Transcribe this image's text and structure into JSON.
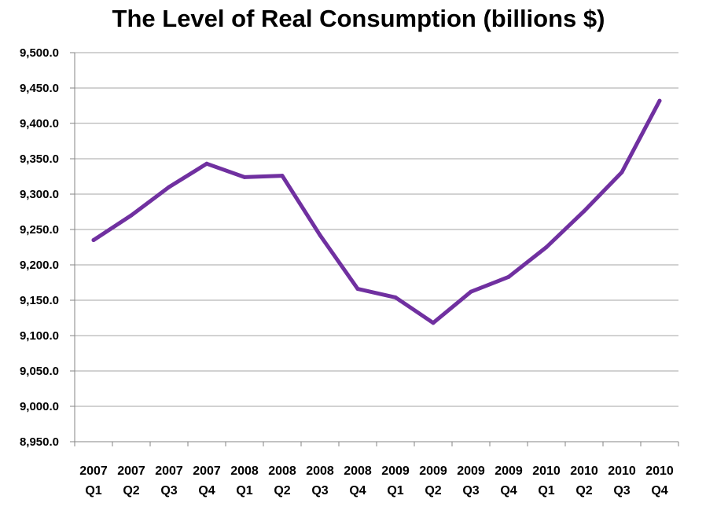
{
  "chart_data": {
    "type": "line",
    "title": "The Level of Real Consumption (billions $)",
    "xlabel": "",
    "ylabel": "",
    "categories": [
      [
        "2007",
        "Q1"
      ],
      [
        "2007",
        "Q2"
      ],
      [
        "2007",
        "Q3"
      ],
      [
        "2007",
        "Q4"
      ],
      [
        "2008",
        "Q1"
      ],
      [
        "2008",
        "Q2"
      ],
      [
        "2008",
        "Q3"
      ],
      [
        "2008",
        "Q4"
      ],
      [
        "2009",
        "Q1"
      ],
      [
        "2009",
        "Q2"
      ],
      [
        "2009",
        "Q3"
      ],
      [
        "2009",
        "Q4"
      ],
      [
        "2010",
        "Q1"
      ],
      [
        "2010",
        "Q2"
      ],
      [
        "2010",
        "Q3"
      ],
      [
        "2010",
        "Q4"
      ]
    ],
    "series": [
      {
        "values": [
          9235,
          9270,
          9310,
          9343,
          9324,
          9326,
          9242,
          9166,
          9154,
          9118,
          9162,
          9183,
          9225,
          9276,
          9331,
          9432
        ]
      }
    ],
    "ylim": [
      8950,
      9500
    ],
    "yticks": [
      "8,950.0",
      "9,000.0",
      "9,050.0",
      "9,100.0",
      "9,150.0",
      "9,200.0",
      "9,250.0",
      "9,300.0",
      "9,350.0",
      "9,400.0",
      "9,450.0",
      "9,500.0"
    ],
    "grid": true,
    "legend": "none",
    "line_color": "#7030A0",
    "grid_color": "#A6A6A6",
    "axis_color": "#868686"
  }
}
